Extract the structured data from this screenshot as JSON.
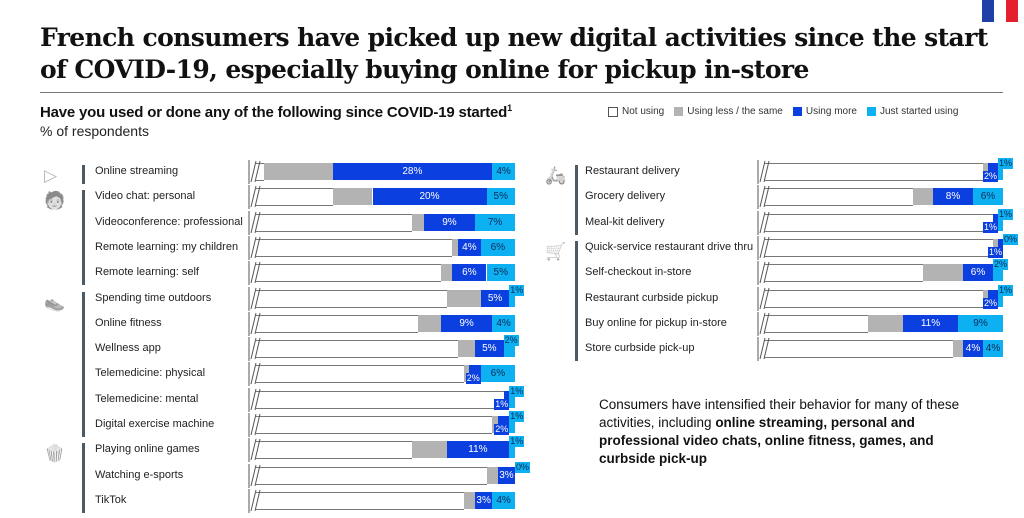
{
  "title": "French consumers have picked up new digital activities since the start of COVID-19, especially buying online for pickup in-store",
  "subtitle": "Have you used or done any of the following since COVID-19 started",
  "subtitle_footnote": "1",
  "unit": "% of respondents",
  "flag_colors": [
    "#1f3fa8",
    "#ffffff",
    "#e5202e"
  ],
  "legend": [
    {
      "label": "Not using",
      "color": "#ffffff"
    },
    {
      "label": "Using less / the same",
      "color": "#b3b3b3"
    },
    {
      "label": "Using more",
      "color": "#0b3fe0"
    },
    {
      "label": "Just started using",
      "color": "#0db0f0"
    }
  ],
  "note": {
    "text": "Consumers have intensified their behavior for many of these activities, including ",
    "bold": "online streaming, personal and professional video chats, online fitness, games, and curbside pick-up"
  },
  "chart_data": [
    {
      "type": "bar",
      "orientation": "horizontal-stacked",
      "panel": "left",
      "axis_break": true,
      "categories": [
        "Online streaming",
        "Video chat: personal",
        "Videoconference: professional",
        "Remote learning: my children",
        "Remote learning: self",
        "Spending time outdoors",
        "Online fitness",
        "Wellness app",
        "Telemedicine: physical",
        "Telemedicine: mental",
        "Digital exercise machine",
        "Playing online games",
        "Watching e-sports",
        "TikTok"
      ],
      "groups": [
        {
          "icon": "video-play-icon",
          "rows": [
            0
          ]
        },
        {
          "icon": "presenter-icon",
          "rows": [
            1,
            2,
            3,
            4
          ]
        },
        {
          "icon": "sneaker-icon",
          "rows": [
            5,
            6,
            7,
            8,
            9,
            10
          ]
        },
        {
          "icon": "popcorn-icon",
          "rows": [
            11,
            12,
            13
          ]
        }
      ],
      "series": [
        {
          "name": "Using less / the same",
          "values": [
            12,
            7,
            2,
            1,
            2,
            6,
            4,
            3,
            1,
            0,
            1,
            6,
            2,
            2
          ]
        },
        {
          "name": "Using more",
          "values": [
            28,
            20,
            9,
            4,
            6,
            5,
            9,
            5,
            2,
            1,
            2,
            11,
            3,
            3
          ]
        },
        {
          "name": "Just started using",
          "values": [
            4,
            5,
            7,
            6,
            5,
            1,
            4,
            2,
            6,
            1,
            1,
            1,
            0,
            4
          ]
        }
      ]
    },
    {
      "type": "bar",
      "orientation": "horizontal-stacked",
      "panel": "right",
      "axis_break": true,
      "categories": [
        "Restaurant delivery",
        "Grocery delivery",
        "Meal-kit delivery",
        "Quick-service restaurant drive thru",
        "Self-checkout in-store",
        "Restaurant curbside pickup",
        "Buy online for pickup in-store",
        "Store curbside pick-up"
      ],
      "groups": [
        {
          "icon": "delivery-scooter-icon",
          "rows": [
            0,
            1,
            2
          ]
        },
        {
          "icon": "shopping-cart-icon",
          "rows": [
            3,
            4,
            5,
            6,
            7
          ]
        }
      ],
      "series": [
        {
          "name": "Using less / the same",
          "values": [
            1,
            4,
            0,
            1,
            8,
            1,
            7,
            2
          ]
        },
        {
          "name": "Using more",
          "values": [
            2,
            8,
            1,
            1,
            6,
            2,
            11,
            4
          ]
        },
        {
          "name": "Just started using",
          "values": [
            1,
            6,
            1,
            0,
            2,
            1,
            9,
            4
          ]
        }
      ]
    }
  ]
}
